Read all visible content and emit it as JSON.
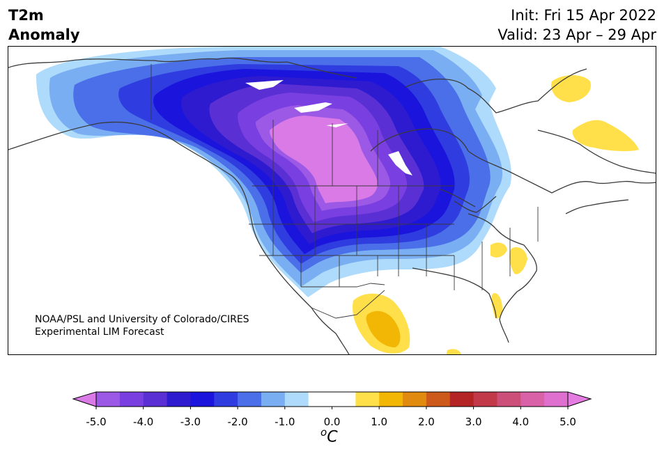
{
  "header": {
    "title_line1": "T2m",
    "title_line2": "Anomaly",
    "init": "Init: Fri 15 Apr 2022",
    "valid": "Valid: 23 Apr – 29 Apr"
  },
  "credit": {
    "line1": "NOAA/PSL and University of Colorado/CIRES",
    "line2": "Experimental LIM Forecast"
  },
  "colorbar": {
    "unit_base": "C",
    "unit_sup": "o",
    "ticks": [
      "-5.0",
      "-4.0",
      "-3.0",
      "-2.0",
      "-1.0",
      "0.0",
      "1.0",
      "2.0",
      "3.0",
      "4.0",
      "5.0"
    ],
    "colors": [
      "#9b59e6",
      "#7a3fe0",
      "#5a2fd4",
      "#2e1bd0",
      "#1a14dc",
      "#2f3ce0",
      "#4a6fe8",
      "#7aaef2",
      "#aedbfb",
      "#ffffff",
      "#ffffff",
      "#ffe04a",
      "#f2b705",
      "#e08a10",
      "#cd5a1a",
      "#b42424",
      "#c23a4a",
      "#cc4f7a",
      "#d861a7",
      "#e070d0"
    ],
    "under_color": "#d97ae6",
    "over_color": "#e57ce1"
  }
}
